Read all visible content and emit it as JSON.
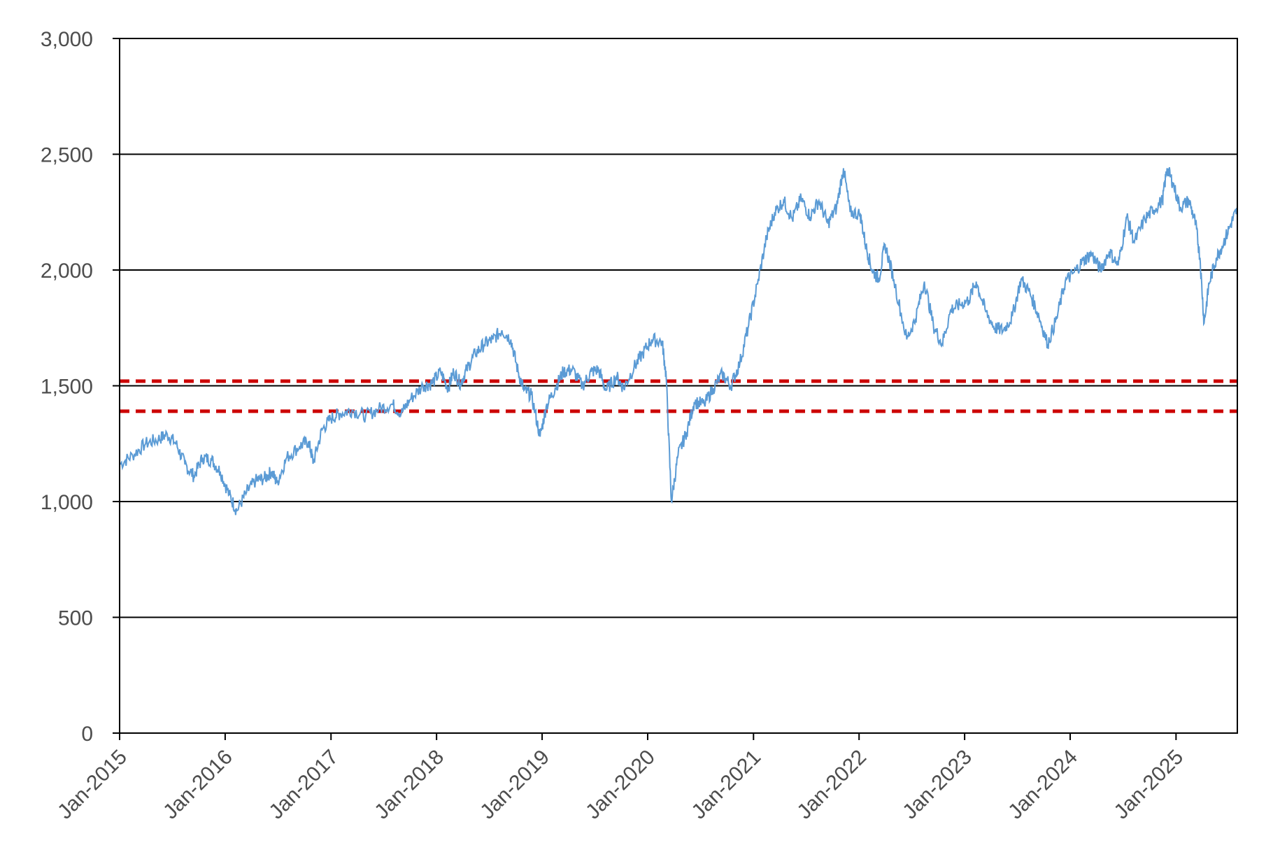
{
  "chart_data": {
    "type": "line",
    "title": "",
    "xlabel": "",
    "ylabel": "",
    "ylim": [
      0,
      3000
    ],
    "xlim": [
      "2015-01-01",
      "2025-08-01"
    ],
    "grid": "horizontal",
    "y_ticks": [
      "0",
      "500",
      "1,000",
      "1,500",
      "2,000",
      "2,500",
      "3,000"
    ],
    "y_tick_values": [
      0,
      500,
      1000,
      1500,
      2000,
      2500,
      3000
    ],
    "x_ticks": [
      "Jan-2015",
      "Jan-2016",
      "Jan-2017",
      "Jan-2018",
      "Jan-2019",
      "Jan-2020",
      "Jan-2021",
      "Jan-2022",
      "Jan-2023",
      "Jan-2024",
      "Jan-2025"
    ],
    "x_tick_dates": [
      "2015-01-01",
      "2016-01-01",
      "2017-01-01",
      "2018-01-01",
      "2019-01-01",
      "2020-01-01",
      "2021-01-01",
      "2022-01-01",
      "2023-01-01",
      "2024-01-01",
      "2025-01-01"
    ],
    "series": [
      {
        "color": "#5b9bd5",
        "points": [
          [
            "2015-01-01",
            1160
          ],
          [
            "2015-02-15",
            1200
          ],
          [
            "2015-04-01",
            1250
          ],
          [
            "2015-05-15",
            1270
          ],
          [
            "2015-06-15",
            1290
          ],
          [
            "2015-07-15",
            1250
          ],
          [
            "2015-08-15",
            1160
          ],
          [
            "2015-09-15",
            1110
          ],
          [
            "2015-10-15",
            1190
          ],
          [
            "2015-11-15",
            1180
          ],
          [
            "2015-12-15",
            1130
          ],
          [
            "2016-01-15",
            1030
          ],
          [
            "2016-02-10",
            960
          ],
          [
            "2016-03-15",
            1040
          ],
          [
            "2016-04-15",
            1090
          ],
          [
            "2016-05-15",
            1100
          ],
          [
            "2016-06-10",
            1130
          ],
          [
            "2016-06-28",
            1080
          ],
          [
            "2016-08-01",
            1190
          ],
          [
            "2016-09-15",
            1240
          ],
          [
            "2016-10-15",
            1260
          ],
          [
            "2016-11-01",
            1170
          ],
          [
            "2016-12-01",
            1310
          ],
          [
            "2017-01-01",
            1360
          ],
          [
            "2017-02-01",
            1380
          ],
          [
            "2017-03-15",
            1395
          ],
          [
            "2017-05-01",
            1370
          ],
          [
            "2017-06-15",
            1400
          ],
          [
            "2017-08-01",
            1420
          ],
          [
            "2017-09-01",
            1380
          ],
          [
            "2017-10-01",
            1440
          ],
          [
            "2017-11-15",
            1500
          ],
          [
            "2017-12-15",
            1510
          ],
          [
            "2018-01-15",
            1560
          ],
          [
            "2018-02-10",
            1490
          ],
          [
            "2018-03-01",
            1560
          ],
          [
            "2018-03-25",
            1510
          ],
          [
            "2018-04-15",
            1570
          ],
          [
            "2018-05-15",
            1640
          ],
          [
            "2018-06-15",
            1680
          ],
          [
            "2018-07-15",
            1700
          ],
          [
            "2018-08-15",
            1740
          ],
          [
            "2018-09-15",
            1700
          ],
          [
            "2018-10-10",
            1560
          ],
          [
            "2018-10-30",
            1480
          ],
          [
            "2018-11-25",
            1460
          ],
          [
            "2018-12-25",
            1280
          ],
          [
            "2019-01-15",
            1410
          ],
          [
            "2019-02-15",
            1490
          ],
          [
            "2019-03-15",
            1560
          ],
          [
            "2019-04-15",
            1570
          ],
          [
            "2019-05-20",
            1500
          ],
          [
            "2019-06-20",
            1560
          ],
          [
            "2019-07-15",
            1570
          ],
          [
            "2019-08-10",
            1480
          ],
          [
            "2019-09-15",
            1540
          ],
          [
            "2019-10-10",
            1490
          ],
          [
            "2019-11-15",
            1580
          ],
          [
            "2019-12-15",
            1640
          ],
          [
            "2020-01-15",
            1700
          ],
          [
            "2020-02-20",
            1690
          ],
          [
            "2020-03-05",
            1540
          ],
          [
            "2020-03-23",
            1000
          ],
          [
            "2020-04-15",
            1200
          ],
          [
            "2020-05-15",
            1300
          ],
          [
            "2020-06-10",
            1430
          ],
          [
            "2020-07-15",
            1420
          ],
          [
            "2020-08-15",
            1490
          ],
          [
            "2020-09-15",
            1550
          ],
          [
            "2020-10-15",
            1500
          ],
          [
            "2020-11-15",
            1600
          ],
          [
            "2020-12-15",
            1760
          ],
          [
            "2021-01-15",
            1940
          ],
          [
            "2021-02-15",
            2140
          ],
          [
            "2021-03-15",
            2250
          ],
          [
            "2021-04-15",
            2300
          ],
          [
            "2021-05-15",
            2220
          ],
          [
            "2021-06-15",
            2310
          ],
          [
            "2021-07-15",
            2230
          ],
          [
            "2021-08-15",
            2300
          ],
          [
            "2021-09-15",
            2200
          ],
          [
            "2021-10-15",
            2270
          ],
          [
            "2021-11-08",
            2440
          ],
          [
            "2021-12-01",
            2250
          ],
          [
            "2022-01-05",
            2240
          ],
          [
            "2022-01-25",
            2100
          ],
          [
            "2022-02-15",
            2000
          ],
          [
            "2022-03-10",
            1960
          ],
          [
            "2022-04-01",
            2110
          ],
          [
            "2022-05-01",
            1960
          ],
          [
            "2022-06-15",
            1700
          ],
          [
            "2022-07-15",
            1790
          ],
          [
            "2022-08-15",
            1950
          ],
          [
            "2022-09-15",
            1760
          ],
          [
            "2022-10-15",
            1680
          ],
          [
            "2022-11-15",
            1830
          ],
          [
            "2022-12-15",
            1850
          ],
          [
            "2023-01-15",
            1870
          ],
          [
            "2023-02-10",
            1950
          ],
          [
            "2023-03-15",
            1820
          ],
          [
            "2023-04-15",
            1750
          ],
          [
            "2023-05-15",
            1740
          ],
          [
            "2023-06-15",
            1800
          ],
          [
            "2023-07-15",
            1960
          ],
          [
            "2023-08-15",
            1900
          ],
          [
            "2023-09-15",
            1800
          ],
          [
            "2023-10-15",
            1680
          ],
          [
            "2023-11-15",
            1790
          ],
          [
            "2023-12-15",
            1950
          ],
          [
            "2024-01-15",
            1990
          ],
          [
            "2024-02-15",
            2040
          ],
          [
            "2024-03-15",
            2070
          ],
          [
            "2024-04-15",
            2000
          ],
          [
            "2024-05-15",
            2080
          ],
          [
            "2024-06-15",
            2020
          ],
          [
            "2024-07-15",
            2230
          ],
          [
            "2024-08-10",
            2120
          ],
          [
            "2024-09-15",
            2220
          ],
          [
            "2024-10-15",
            2260
          ],
          [
            "2024-11-15",
            2300
          ],
          [
            "2024-12-01",
            2440
          ],
          [
            "2024-12-20",
            2380
          ],
          [
            "2025-01-15",
            2270
          ],
          [
            "2025-02-15",
            2300
          ],
          [
            "2025-03-10",
            2200
          ],
          [
            "2025-03-25",
            2050
          ],
          [
            "2025-04-08",
            1770
          ],
          [
            "2025-04-25",
            1940
          ],
          [
            "2025-05-20",
            2050
          ],
          [
            "2025-06-15",
            2120
          ],
          [
            "2025-07-10",
            2200
          ],
          [
            "2025-07-31",
            2260
          ]
        ]
      }
    ],
    "reference_lines": [
      {
        "value": 1520,
        "color": "#cc0000",
        "style": "dashed"
      },
      {
        "value": 1390,
        "color": "#cc0000",
        "style": "dashed"
      }
    ]
  }
}
